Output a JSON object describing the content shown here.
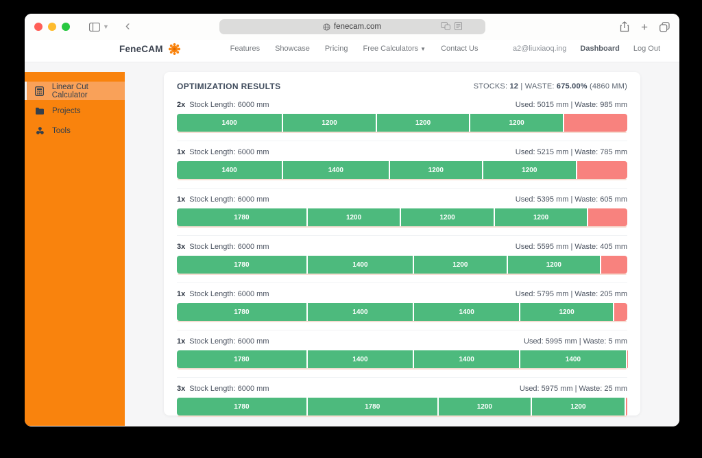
{
  "browser": {
    "url": "fenecam.com",
    "window_controls": [
      "close",
      "minimize",
      "zoom"
    ],
    "toolbar_icon_names": [
      "sidebar-icon",
      "chevron-down-icon",
      "back-icon",
      "globe-icon",
      "translate-icon",
      "reader-icon",
      "share-icon",
      "new-tab-icon",
      "tabs-icon"
    ]
  },
  "header": {
    "brand": "FeneCAM",
    "logo_icon": "gear-flower-icon",
    "nav": [
      {
        "label": "Features",
        "dropdown": false
      },
      {
        "label": "Showcase",
        "dropdown": false
      },
      {
        "label": "Pricing",
        "dropdown": false
      },
      {
        "label": "Free Calculators",
        "dropdown": true
      },
      {
        "label": "Contact Us",
        "dropdown": false
      }
    ],
    "email": "a2@liuxiaoq.ing",
    "dashboard_label": "Dashboard",
    "logout_label": "Log Out"
  },
  "sidebar": {
    "items": [
      {
        "label": "Linear Cut Calculator",
        "icon": "calculator-icon",
        "active": true
      },
      {
        "label": "Projects",
        "icon": "folder-icon",
        "active": false
      },
      {
        "label": "Tools",
        "icon": "tools-icon",
        "active": false
      }
    ]
  },
  "results": {
    "title": "OPTIMIZATION RESULTS",
    "summary_parts": [
      {
        "text": "STOCKS: ",
        "bold": false
      },
      {
        "text": "12",
        "bold": true
      },
      {
        "text": " | WASTE: ",
        "bold": false
      },
      {
        "text": "675.00%",
        "bold": true
      },
      {
        "text": " (4860 MM)",
        "bold": false
      }
    ],
    "stock_total_mm": 6000,
    "rows": [
      {
        "count": "2x",
        "label": "Stock Length: 6000 mm",
        "usage": "Used: 5015 mm | Waste: 985 mm",
        "segments": [
          1400,
          1200,
          1200,
          1200
        ],
        "waste_mm": 985
      },
      {
        "count": "1x",
        "label": "Stock Length: 6000 mm",
        "usage": "Used: 5215 mm | Waste: 785 mm",
        "segments": [
          1400,
          1400,
          1200,
          1200
        ],
        "waste_mm": 785
      },
      {
        "count": "1x",
        "label": "Stock Length: 6000 mm",
        "usage": "Used: 5395 mm | Waste: 605 mm",
        "segments": [
          1780,
          1200,
          1200,
          1200
        ],
        "waste_mm": 605
      },
      {
        "count": "3x",
        "label": "Stock Length: 6000 mm",
        "usage": "Used: 5595 mm | Waste: 405 mm",
        "segments": [
          1780,
          1400,
          1200,
          1200
        ],
        "waste_mm": 405
      },
      {
        "count": "1x",
        "label": "Stock Length: 6000 mm",
        "usage": "Used: 5795 mm | Waste: 205 mm",
        "segments": [
          1780,
          1400,
          1400,
          1200
        ],
        "waste_mm": 205
      },
      {
        "count": "1x",
        "label": "Stock Length: 6000 mm",
        "usage": "Used: 5995 mm | Waste: 5 mm",
        "segments": [
          1780,
          1400,
          1400,
          1400
        ],
        "waste_mm": 5
      },
      {
        "count": "3x",
        "label": "Stock Length: 6000 mm",
        "usage": "Used: 5975 mm | Waste: 25 mm",
        "segments": [
          1780,
          1780,
          1200,
          1200
        ],
        "waste_mm": 25
      }
    ]
  },
  "colors": {
    "accent_orange": "#f9830d",
    "accent_orange_active": "#f9a159",
    "cut_green": "#4dba7d",
    "waste_red": "#f8827e"
  }
}
